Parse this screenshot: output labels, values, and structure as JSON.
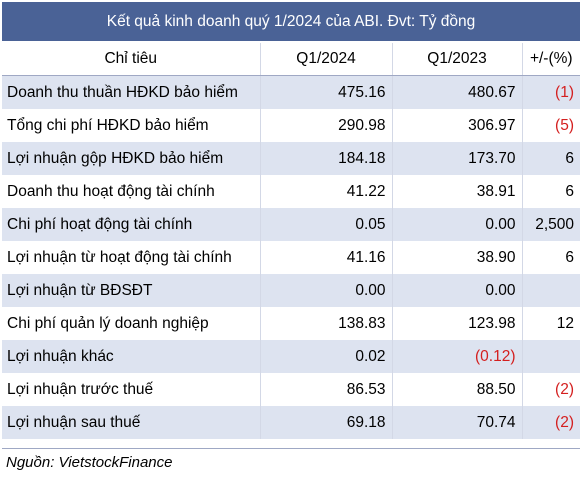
{
  "title": "Kết quả kinh doanh quý 1/2024 của ABI. Đvt: Tỷ đồng",
  "columns": [
    "Chỉ tiêu",
    "Q1/2024",
    "Q1/2023",
    "+/-(%)"
  ],
  "rows": [
    {
      "label": "Doanh thu thuần HĐKD bảo hiểm",
      "q1_2024": "475.16",
      "q1_2023": "480.67",
      "change": "(1)"
    },
    {
      "label": "Tổng chi phí HĐKD bảo hiểm",
      "q1_2024": "290.98",
      "q1_2023": "306.97",
      "change": "(5)"
    },
    {
      "label": "Lợi nhuận gộp HĐKD bảo hiểm",
      "q1_2024": "184.18",
      "q1_2023": "173.70",
      "change": "6"
    },
    {
      "label": "Doanh thu hoạt động tài chính",
      "q1_2024": "41.22",
      "q1_2023": "38.91",
      "change": "6"
    },
    {
      "label": "Chi phí hoạt động tài chính",
      "q1_2024": "0.05",
      "q1_2023": "0.00",
      "change": "2,500"
    },
    {
      "label": "Lợi nhuận từ hoạt động tài chính",
      "q1_2024": "41.16",
      "q1_2023": "38.90",
      "change": "6"
    },
    {
      "label": "Lợi nhuận từ BĐSĐT",
      "q1_2024": "0.00",
      "q1_2023": "0.00",
      "change": ""
    },
    {
      "label": "Chi phí quản lý doanh nghiệp",
      "q1_2024": "138.83",
      "q1_2023": "123.98",
      "change": "12"
    },
    {
      "label": "Lợi nhuận khác",
      "q1_2024": "0.02",
      "q1_2023": "(0.12)",
      "change": ""
    },
    {
      "label": "Lợi nhuận trước thuế",
      "q1_2024": "86.53",
      "q1_2023": "88.50",
      "change": "(2)"
    },
    {
      "label": "Lợi nhuận sau thuế",
      "q1_2024": "69.18",
      "q1_2023": "70.74",
      "change": "(2)"
    }
  ],
  "source": "Nguồn: VietstockFinance",
  "colors": {
    "header_bg": "#4a6296",
    "stripe": "#dde3f0",
    "negative": "#d41f1f"
  }
}
